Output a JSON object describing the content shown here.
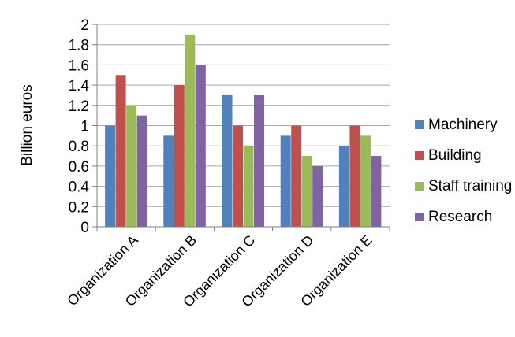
{
  "chart_data": {
    "type": "bar",
    "title": "",
    "xlabel": "",
    "ylabel": "Billion euros",
    "ylim": [
      0,
      2
    ],
    "yticks": [
      "0",
      "0.2",
      "0.4",
      "0.6",
      "0.8",
      "1",
      "1.2",
      "1.4",
      "1.6",
      "1.8",
      "2"
    ],
    "grid": true,
    "legend_position": "right",
    "categories": [
      "Organization A",
      "Organization B",
      "Organization C",
      "Organization D",
      "Organization E"
    ],
    "series": [
      {
        "name": "Machinery",
        "color": "#4F81BD",
        "values": [
          1.0,
          0.9,
          1.3,
          0.9,
          0.8
        ]
      },
      {
        "name": "Building",
        "color": "#C0504D",
        "values": [
          1.5,
          1.4,
          1.0,
          1.0,
          1.0
        ]
      },
      {
        "name": "Staff training",
        "color": "#9BBB59",
        "values": [
          1.2,
          1.9,
          0.8,
          0.7,
          0.9
        ]
      },
      {
        "name": "Research",
        "color": "#8064A2",
        "values": [
          1.1,
          1.6,
          1.3,
          0.6,
          0.7
        ]
      }
    ]
  }
}
